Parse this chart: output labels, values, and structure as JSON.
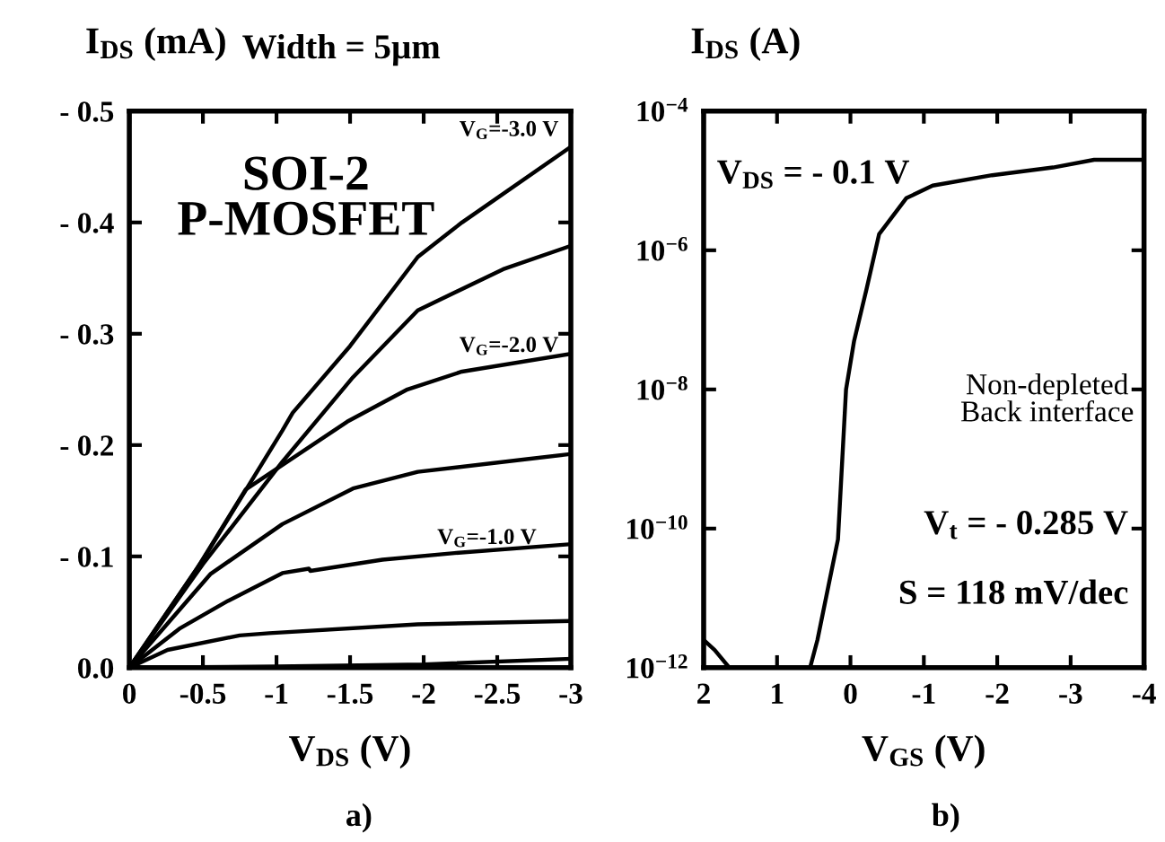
{
  "chart_data": [
    {
      "type": "line",
      "title": "Width = 5µm",
      "xlabel": "V$_{DS}$ (V)",
      "ylabel": "I$_{DS}$ (mA)",
      "xlim": [
        0,
        -3
      ],
      "ylim": [
        0,
        -0.5
      ],
      "xticks": [
        0,
        -0.5,
        -1,
        -1.5,
        -2,
        -2.5,
        -3
      ],
      "yticks": [
        {
          "value": 0,
          "label": "0.0"
        },
        {
          "value": -0.1,
          "label": "- 0.1"
        },
        {
          "value": -0.2,
          "label": "- 0.2"
        },
        {
          "value": -0.3,
          "label": "- 0.3"
        },
        {
          "value": -0.4,
          "label": "- 0.4"
        },
        {
          "value": -0.5,
          "label": "- 0.5"
        }
      ],
      "series": [
        {
          "color": "#000000",
          "x": [
            0,
            -0.5,
            -1.04,
            -1.11,
            -1.5,
            -1.96,
            -2.26,
            -3
          ],
          "values": [
            0,
            -0.097,
            -0.213,
            -0.229,
            -0.289,
            -0.369,
            -0.4,
            -0.468
          ]
        },
        {
          "color": "#000000",
          "x": [
            0,
            -0.5,
            -1.04,
            -1.52,
            -1.96,
            -2.54,
            -3
          ],
          "values": [
            0,
            -0.093,
            -0.185,
            -0.261,
            -0.321,
            -0.358,
            -0.379
          ]
        },
        {
          "color": "#000000",
          "x": [
            0,
            -0.46,
            -0.79,
            -1.48,
            -1.89,
            -2.26,
            -3
          ],
          "values": [
            0,
            -0.089,
            -0.16,
            -0.221,
            -0.25,
            -0.266,
            -0.282
          ]
        },
        {
          "color": "#000000",
          "x": [
            0,
            -0.55,
            -1.04,
            -1.52,
            -1.96,
            -3
          ],
          "values": [
            0,
            -0.084,
            -0.129,
            -0.161,
            -0.176,
            -0.192
          ]
        },
        {
          "color": "#000000",
          "x": [
            0,
            -0.34,
            -0.67,
            -1.04,
            -1.22,
            -1.23,
            -1.72,
            -2.21,
            -3
          ],
          "values": [
            0,
            -0.035,
            -0.06,
            -0.085,
            -0.089,
            -0.087,
            -0.097,
            -0.103,
            -0.111
          ]
        },
        {
          "color": "#000000",
          "x": [
            0,
            -0.26,
            -0.75,
            -0.95,
            -1.96,
            -3
          ],
          "values": [
            0,
            -0.016,
            -0.029,
            -0.031,
            -0.039,
            -0.042
          ]
        },
        {
          "color": "#000000",
          "x": [
            0,
            -1,
            -2,
            -3
          ],
          "values": [
            0,
            -0.001,
            -0.003,
            -0.008
          ]
        }
      ],
      "annotations": [
        "SOI-2\nP-MOSFET",
        "V$_{G}$=-3.0 V",
        "V$_{G}$=-2.0 V",
        "V$_{G}$=-1.0 V",
        "a)"
      ]
    },
    {
      "type": "line",
      "xlabel": "V$_{GS}$ (V)",
      "ylabel": "I$_{DS}$ (A)",
      "log": "y",
      "xlim": [
        2,
        -4
      ],
      "ylim": [
        1e-12,
        0.0001
      ],
      "xticks": [
        2,
        1,
        0,
        -1,
        -2,
        -3,
        -4
      ],
      "yticks": [
        {
          "value": 1e-12,
          "label": "10$^{−12}$"
        },
        {
          "value": 1e-10,
          "label": "10$^{−10}$"
        },
        {
          "value": 1e-08,
          "label": "10$^{−8}$"
        },
        {
          "value": 1e-06,
          "label": "10$^{−6}$"
        },
        {
          "value": 0.0001,
          "label": "10$^{−4}$"
        }
      ],
      "series": [
        {
          "color": "#000000",
          "x": [
            2,
            1.85,
            1.65
          ],
          "values": [
            2.5e-12,
            1.8e-12,
            1e-12
          ]
        },
        {
          "color": "#000000",
          "x": [
            0.55,
            0.45,
            0.3,
            0.17,
            0.06,
            -0.05,
            -0.22,
            -0.39,
            -0.76,
            -1.12,
            -1.93,
            -2.76,
            -3.32,
            -4
          ],
          "values": [
            1e-12,
            2.5e-12,
            1.5e-11,
            7e-11,
            1e-08,
            5e-08,
            2.8e-07,
            1.7e-06,
            5.6e-06,
            8.5e-06,
            1.2e-05,
            1.55e-05,
            2e-05,
            2e-05
          ]
        }
      ],
      "annotations": [
        "V$_{DS}$ = - 0.1 V",
        "Non-depleted\nBack interface",
        "V$_{t}$ = - 0.285 V",
        "S = 118 mV/dec",
        "b)"
      ]
    }
  ]
}
